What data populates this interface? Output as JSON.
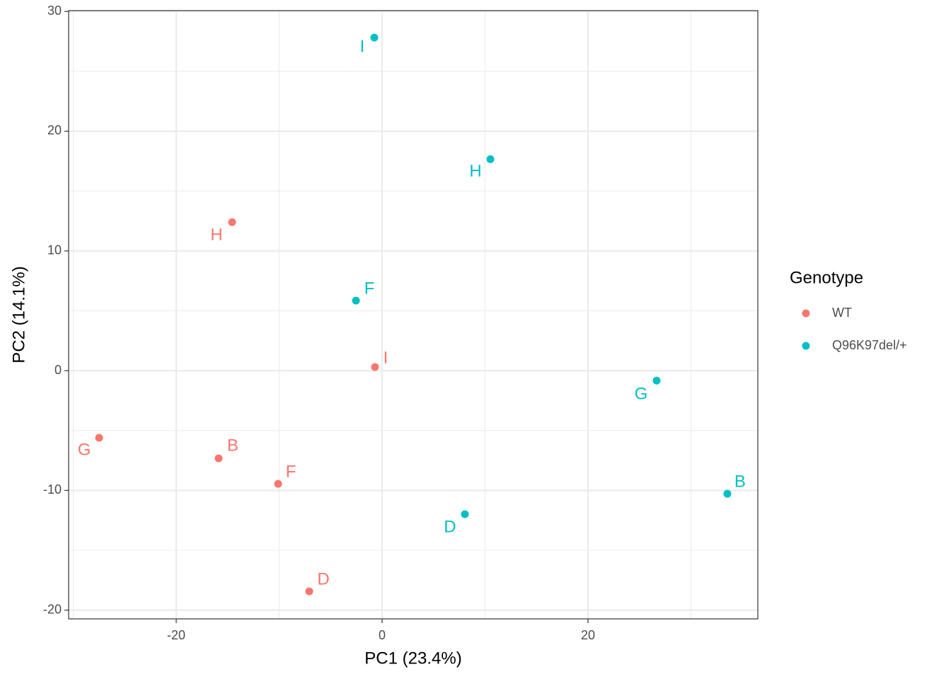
{
  "chart_data": {
    "type": "scatter",
    "x_label": "PC1 (23.4%)",
    "y_label": "PC2 (14.1%)",
    "xlim": [
      -30.45,
      36.5
    ],
    "ylim": [
      -20.73,
      30.07
    ],
    "xticks": [
      -20,
      0,
      20
    ],
    "yticks": [
      -20,
      -10,
      0,
      10,
      20,
      30
    ],
    "grid": true,
    "legend_title": "Genotype",
    "legend_position": "right",
    "series": [
      {
        "name": "WT",
        "color": "#F8766D",
        "labels": [
          "I",
          "H",
          "G",
          "B",
          "F",
          "D"
        ],
        "x": [
          -0.69,
          -14.57,
          -27.49,
          -15.88,
          -10.1,
          -7.08
        ],
        "values": [
          0.3,
          12.4,
          -5.61,
          -7.32,
          -9.45,
          -18.43
        ]
      },
      {
        "name": "Q96K97del/+",
        "color": "#00BFC4",
        "labels": [
          "I",
          "H",
          "F",
          "G",
          "B",
          "D"
        ],
        "x": [
          -0.76,
          10.52,
          -2.54,
          26.67,
          33.54,
          8.04
        ],
        "values": [
          27.82,
          17.66,
          5.85,
          -0.83,
          -10.28,
          -11.99
        ]
      }
    ]
  }
}
